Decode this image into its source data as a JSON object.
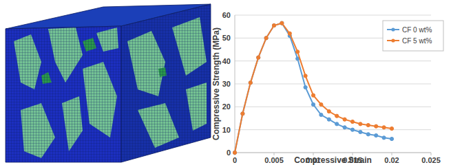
{
  "chart_data": {
    "type": "line",
    "xlabel": "Compressive Strain",
    "ylabel": "Compressive Strength (MPa)",
    "x": [
      0,
      0.001,
      0.002,
      0.003,
      0.004,
      0.005,
      0.006,
      0.007,
      0.008,
      0.009,
      0.01,
      0.011,
      0.012,
      0.013,
      0.014,
      0.015,
      0.016,
      0.017,
      0.018,
      0.019,
      0.02
    ],
    "series": [
      {
        "name": "CF 0 wt%",
        "color": "#5b9bd5",
        "marker": "circle",
        "values": [
          0,
          17,
          30.5,
          41.5,
          50,
          55.5,
          56.5,
          51,
          41,
          28.5,
          21,
          16.5,
          14.5,
          12.5,
          11,
          10,
          9,
          8,
          7.5,
          6.5,
          6
        ]
      },
      {
        "name": "CF 5 wt%",
        "color": "#ed7d31",
        "marker": "circle",
        "values": [
          0,
          17,
          30.5,
          41.5,
          50,
          55.5,
          56.5,
          52,
          44,
          33.5,
          25,
          21,
          18,
          16,
          14.5,
          13.5,
          12.5,
          12,
          11.5,
          11,
          10.5
        ]
      }
    ],
    "xlim": [
      0,
      0.025
    ],
    "xticks": [
      0,
      0.005,
      0.01,
      0.015,
      0.02,
      0.025
    ],
    "ylim": [
      0,
      60
    ],
    "yticks": [
      0,
      10,
      20,
      30,
      40,
      50,
      60
    ],
    "grid": true,
    "legend": "upper right"
  }
}
